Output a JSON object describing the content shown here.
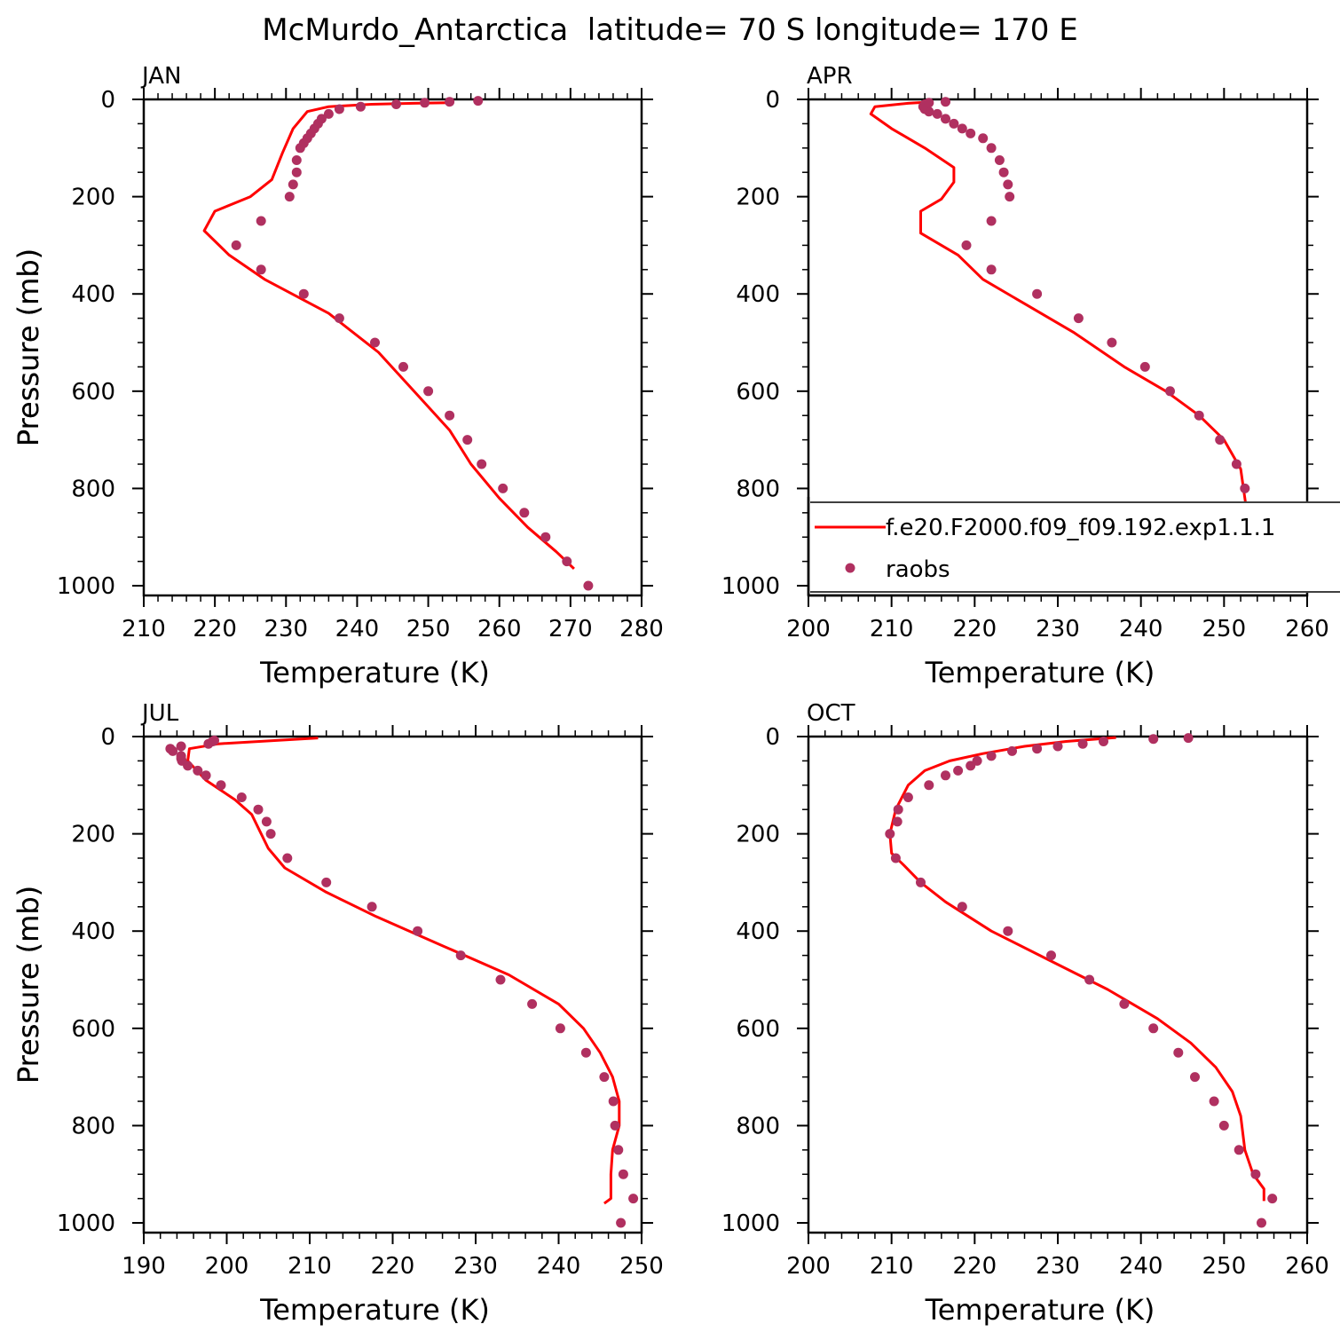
{
  "title": "McMurdo_Antarctica  latitude= 70 S longitude= 170 E",
  "colors": {
    "model_line": "#ff0000",
    "obs_points": "#b03060",
    "axis": "#000000"
  },
  "legend": {
    "placement": "lower-right of APR panel",
    "model_label": "f.e20.F2000.f09_f09.192.exp1.1.1",
    "obs_label": "raobs"
  },
  "chart_data": [
    {
      "type": "line",
      "panel_label": "JAN",
      "xlabel": "Temperature (K)",
      "ylabel": "Pressure (mb)",
      "xlim": [
        210,
        280
      ],
      "ylim": [
        1020,
        0
      ],
      "y_reversed": true,
      "xticks": [
        210,
        220,
        230,
        240,
        250,
        260,
        270,
        280
      ],
      "yticks": [
        0,
        200,
        400,
        600,
        800,
        1000
      ],
      "series": [
        {
          "kind": "line",
          "x": [
            270.5,
            268,
            264,
            260,
            256,
            253,
            248,
            243,
            236,
            227,
            222,
            218.5,
            220,
            225,
            228,
            229.5,
            231,
            233,
            236,
            242,
            248,
            253
          ],
          "y": [
            965,
            930,
            880,
            820,
            750,
            680,
            600,
            520,
            440,
            370,
            320,
            270,
            230,
            200,
            165,
            110,
            60,
            25,
            15,
            10,
            8,
            7
          ]
        },
        {
          "kind": "scatter",
          "x": [
            272.5,
            269.5,
            266.5,
            263.5,
            260.5,
            257.5,
            255.5,
            253,
            250,
            246.5,
            242.5,
            237.5,
            232.5,
            226.5,
            223,
            226.5,
            230.5,
            231,
            231.5,
            231.5,
            232,
            232.5,
            233,
            233.5,
            234,
            234.5,
            235,
            236,
            237.5,
            240.5,
            245.5,
            249.5,
            253,
            257
          ],
          "y": [
            1000,
            950,
            900,
            850,
            800,
            750,
            700,
            650,
            600,
            550,
            500,
            450,
            400,
            350,
            300,
            250,
            200,
            175,
            150,
            125,
            100,
            90,
            80,
            70,
            60,
            50,
            40,
            30,
            20,
            15,
            10,
            7,
            5,
            3
          ]
        }
      ]
    },
    {
      "type": "line",
      "panel_label": "APR",
      "xlabel": "Temperature (K)",
      "ylabel": "Pressure (mb)",
      "xlim": [
        200,
        260
      ],
      "ylim": [
        1020,
        0
      ],
      "y_reversed": true,
      "xticks": [
        200,
        210,
        220,
        230,
        240,
        250,
        260
      ],
      "yticks": [
        0,
        200,
        400,
        600,
        800,
        1000
      ],
      "series": [
        {
          "kind": "line",
          "x": [
            256.5,
            254,
            253,
            252.5,
            252,
            250,
            247,
            243,
            238,
            232,
            226,
            221,
            218,
            213.5,
            213.5,
            216,
            217.5,
            217.5,
            214,
            210,
            207.5,
            208,
            212,
            215
          ],
          "y": [
            965,
            930,
            880,
            820,
            760,
            700,
            650,
            600,
            550,
            480,
            420,
            370,
            320,
            275,
            230,
            205,
            170,
            140,
            100,
            60,
            30,
            15,
            8,
            5
          ]
        },
        {
          "kind": "scatter",
          "x": [
            256.5,
            256,
            254,
            252.5,
            252.5,
            251.5,
            249.5,
            247,
            243.5,
            240.5,
            236.5,
            232.5,
            227.5,
            222,
            219,
            222,
            224.2,
            224,
            223.5,
            223,
            222,
            221,
            219.5,
            218.5,
            217.5,
            216.5,
            215.5,
            214.5,
            214,
            213.8,
            214,
            214.5,
            216.5
          ],
          "y": [
            1000,
            950,
            900,
            850,
            800,
            750,
            700,
            650,
            600,
            550,
            500,
            450,
            400,
            350,
            300,
            250,
            200,
            175,
            150,
            125,
            100,
            80,
            70,
            60,
            50,
            40,
            30,
            25,
            20,
            15,
            10,
            7,
            5
          ]
        }
      ]
    },
    {
      "type": "line",
      "panel_label": "JUL",
      "xlabel": "Temperature (K)",
      "ylabel": "Pressure (mb)",
      "xlim": [
        190,
        250
      ],
      "ylim": [
        1020,
        0
      ],
      "y_reversed": true,
      "xticks": [
        190,
        200,
        210,
        220,
        230,
        240,
        250
      ],
      "yticks": [
        0,
        200,
        400,
        600,
        800,
        1000
      ],
      "series": [
        {
          "kind": "line",
          "x": [
            245.5,
            246.3,
            246.3,
            246.5,
            247.3,
            247.3,
            246.5,
            245,
            243,
            240,
            234,
            226,
            218,
            212,
            207,
            205,
            203,
            201,
            197.5,
            195.3,
            195.5,
            199,
            211
          ],
          "y": [
            960,
            950,
            900,
            850,
            800,
            750,
            700,
            650,
            600,
            550,
            490,
            430,
            370,
            320,
            270,
            230,
            160,
            130,
            90,
            50,
            25,
            15,
            3
          ]
        },
        {
          "kind": "scatter",
          "x": [
            247.5,
            249,
            247.8,
            247.2,
            246.8,
            246.6,
            245.5,
            243.3,
            240.2,
            236.8,
            233,
            228.2,
            223,
            217.5,
            212,
            207.3,
            205.3,
            204.8,
            203.8,
            201.8,
            199.3,
            197.5,
            196.5,
            195.3,
            194.6,
            194.5,
            194.5,
            193.5,
            193.2,
            194.5,
            197.8,
            198.3,
            198.5
          ],
          "y": [
            1000,
            950,
            900,
            850,
            800,
            750,
            700,
            650,
            600,
            550,
            500,
            450,
            400,
            350,
            300,
            250,
            200,
            175,
            150,
            125,
            100,
            80,
            70,
            60,
            50,
            45,
            40,
            30,
            25,
            20,
            15,
            10,
            8
          ]
        }
      ]
    },
    {
      "type": "line",
      "panel_label": "OCT",
      "xlabel": "Temperature (K)",
      "ylabel": "Pressure (mb)",
      "xlim": [
        200,
        260
      ],
      "ylim": [
        1020,
        0
      ],
      "y_reversed": true,
      "xticks": [
        200,
        210,
        220,
        230,
        240,
        250,
        260
      ],
      "yticks": [
        0,
        200,
        400,
        600,
        800,
        1000
      ],
      "series": [
        {
          "kind": "line",
          "x": [
            254.8,
            254.8,
            253.5,
            252.5,
            252,
            251,
            249,
            246,
            242,
            236,
            229,
            222,
            216.5,
            213.5,
            211.5,
            210,
            209.8,
            210.5,
            212,
            214,
            217,
            221,
            226,
            231,
            237
          ],
          "y": [
            955,
            930,
            900,
            850,
            780,
            730,
            680,
            630,
            580,
            520,
            460,
            400,
            340,
            300,
            265,
            240,
            200,
            150,
            100,
            70,
            50,
            35,
            20,
            10,
            2
          ]
        },
        {
          "kind": "scatter",
          "x": [
            254.5,
            255.8,
            253.8,
            251.8,
            250,
            248.8,
            246.5,
            244.5,
            241.5,
            238,
            233.8,
            229.2,
            224,
            218.5,
            213.5,
            210.5,
            209.8,
            210.7,
            210.8,
            212,
            214.5,
            216.5,
            218,
            219.5,
            220.3,
            222,
            224.5,
            227.5,
            230,
            233,
            235.5,
            241.5,
            245.7
          ],
          "y": [
            1000,
            950,
            900,
            850,
            800,
            750,
            700,
            650,
            600,
            550,
            500,
            450,
            400,
            350,
            300,
            250,
            200,
            175,
            150,
            125,
            100,
            80,
            70,
            60,
            50,
            40,
            30,
            25,
            20,
            15,
            10,
            5,
            3
          ]
        }
      ]
    }
  ]
}
